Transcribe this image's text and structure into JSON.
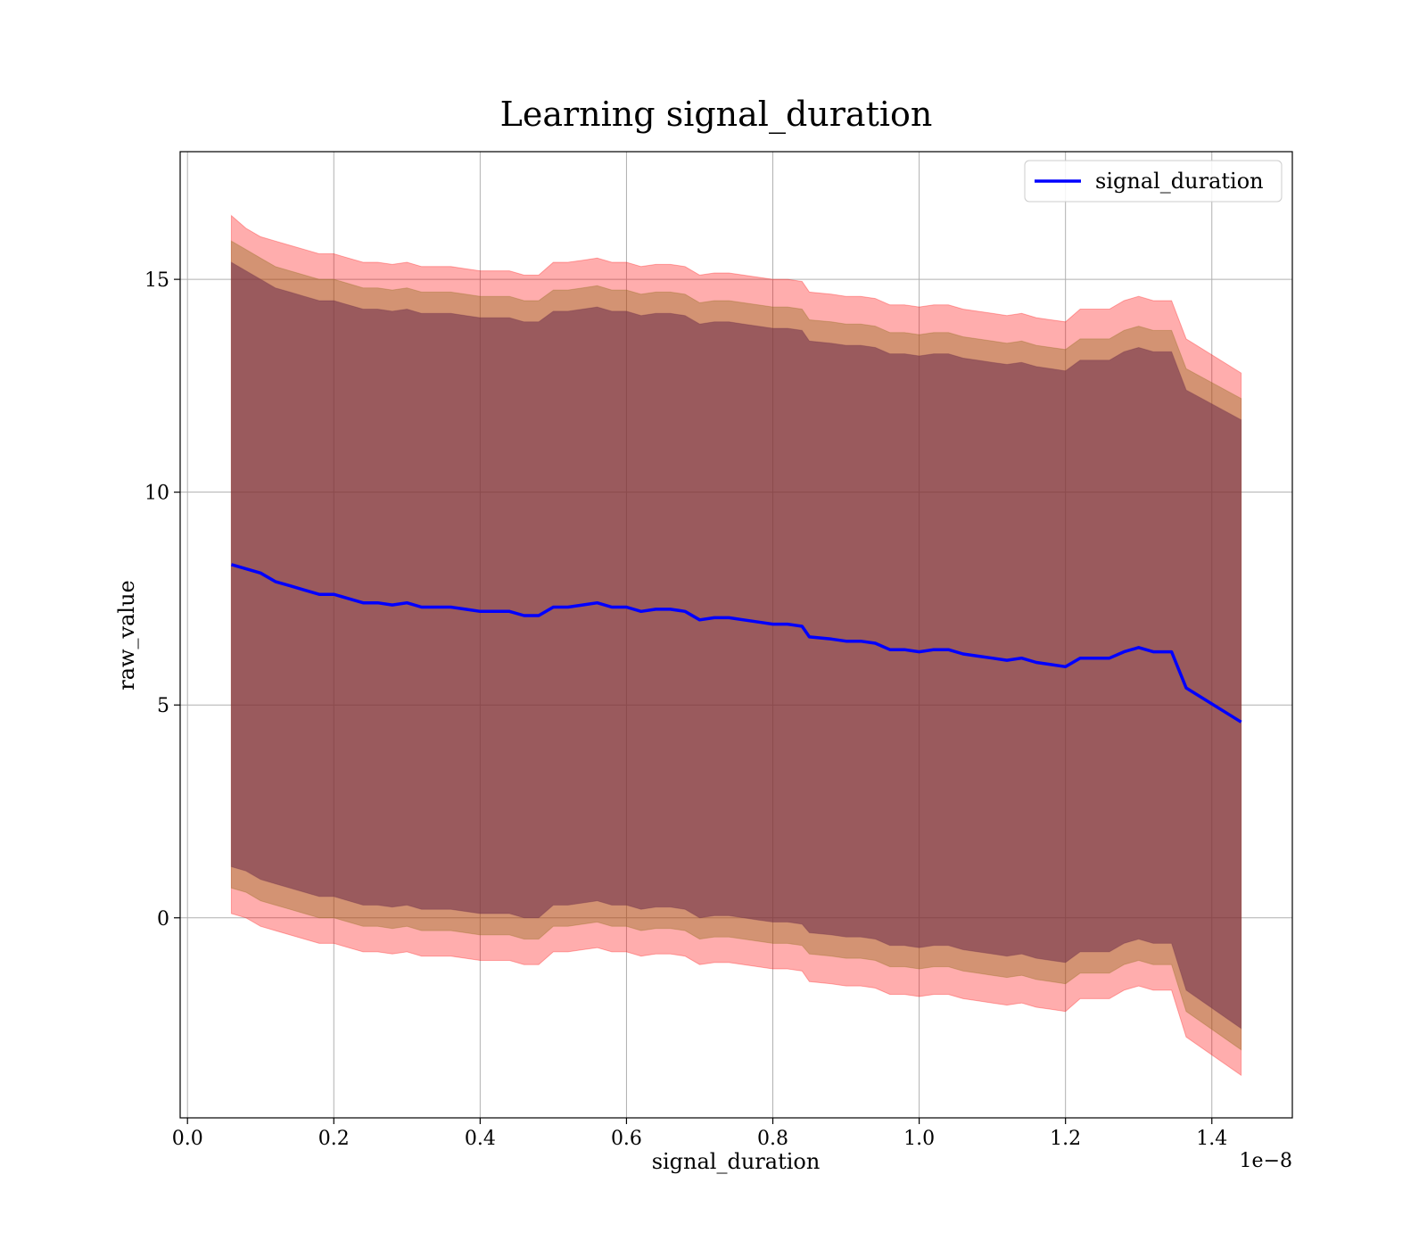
{
  "chart_data": {
    "type": "line",
    "title": "Learning signal_duration",
    "xlabel": "signal_duration",
    "ylabel": "raw_value",
    "x_offset_label": "1e−8",
    "xlim": [
      -0.01,
      1.51
    ],
    "ylim": [
      -4.7,
      18.0
    ],
    "xticks": [
      0.0,
      0.2,
      0.4,
      0.6,
      0.8,
      1.0,
      1.2,
      1.4
    ],
    "xtick_labels": [
      "0.0",
      "0.2",
      "0.4",
      "0.6",
      "0.8",
      "1.0",
      "1.2",
      "1.4"
    ],
    "yticks": [
      0,
      5,
      10,
      15
    ],
    "ytick_labels": [
      "0",
      "5",
      "10",
      "15"
    ],
    "grid": true,
    "legend": {
      "position": "top-right",
      "entries": [
        "signal_duration"
      ]
    },
    "colors": {
      "line": "#0000ff",
      "band_outer": "#ff0000",
      "band_mid": "#8b6914",
      "band_inner": "#6b2c4a"
    },
    "series": [
      {
        "name": "signal_duration",
        "x": [
          0.06,
          0.08,
          0.1,
          0.12,
          0.14,
          0.16,
          0.18,
          0.2,
          0.22,
          0.24,
          0.26,
          0.28,
          0.3,
          0.32,
          0.34,
          0.36,
          0.38,
          0.4,
          0.42,
          0.44,
          0.46,
          0.48,
          0.5,
          0.52,
          0.54,
          0.56,
          0.58,
          0.6,
          0.62,
          0.64,
          0.66,
          0.68,
          0.7,
          0.72,
          0.74,
          0.76,
          0.78,
          0.8,
          0.82,
          0.84,
          0.85,
          0.88,
          0.9,
          0.92,
          0.94,
          0.96,
          0.98,
          1.0,
          1.02,
          1.04,
          1.06,
          1.08,
          1.1,
          1.12,
          1.14,
          1.16,
          1.18,
          1.2,
          1.22,
          1.24,
          1.26,
          1.28,
          1.3,
          1.32,
          1.345,
          1.365,
          1.44
        ],
        "y": [
          8.3,
          8.2,
          8.1,
          7.9,
          7.8,
          7.7,
          7.6,
          7.6,
          7.5,
          7.4,
          7.4,
          7.35,
          7.4,
          7.3,
          7.3,
          7.3,
          7.25,
          7.2,
          7.2,
          7.2,
          7.1,
          7.1,
          7.3,
          7.3,
          7.35,
          7.4,
          7.3,
          7.3,
          7.2,
          7.25,
          7.25,
          7.2,
          7.0,
          7.05,
          7.05,
          7.0,
          6.95,
          6.9,
          6.9,
          6.85,
          6.6,
          6.55,
          6.5,
          6.5,
          6.45,
          6.3,
          6.3,
          6.25,
          6.3,
          6.3,
          6.2,
          6.15,
          6.1,
          6.05,
          6.1,
          6.0,
          5.95,
          5.9,
          6.1,
          6.1,
          6.1,
          6.25,
          6.35,
          6.25,
          6.25,
          5.4,
          4.6
        ]
      }
    ],
    "bands": [
      {
        "level": "outer",
        "upper": [
          16.5,
          16.2,
          16.0,
          15.9,
          15.8,
          15.7,
          15.6,
          15.6,
          15.5,
          15.4,
          15.4,
          15.35,
          15.4,
          15.3,
          15.3,
          15.3,
          15.25,
          15.2,
          15.2,
          15.2,
          15.1,
          15.1,
          15.4,
          15.4,
          15.45,
          15.5,
          15.4,
          15.4,
          15.3,
          15.35,
          15.35,
          15.3,
          15.1,
          15.15,
          15.15,
          15.1,
          15.05,
          15.0,
          15.0,
          14.95,
          14.7,
          14.65,
          14.6,
          14.6,
          14.55,
          14.4,
          14.4,
          14.35,
          14.4,
          14.4,
          14.3,
          14.25,
          14.2,
          14.15,
          14.2,
          14.1,
          14.05,
          14.0,
          14.3,
          14.3,
          14.3,
          14.5,
          14.6,
          14.5,
          14.5,
          13.6,
          12.8
        ],
        "lower": [
          0.1,
          0.0,
          -0.2,
          -0.3,
          -0.4,
          -0.5,
          -0.6,
          -0.6,
          -0.7,
          -0.8,
          -0.8,
          -0.85,
          -0.8,
          -0.9,
          -0.9,
          -0.9,
          -0.95,
          -1.0,
          -1.0,
          -1.0,
          -1.1,
          -1.1,
          -0.8,
          -0.8,
          -0.75,
          -0.7,
          -0.8,
          -0.8,
          -0.9,
          -0.85,
          -0.85,
          -0.9,
          -1.1,
          -1.05,
          -1.05,
          -1.1,
          -1.15,
          -1.2,
          -1.2,
          -1.25,
          -1.5,
          -1.55,
          -1.6,
          -1.6,
          -1.65,
          -1.8,
          -1.8,
          -1.85,
          -1.8,
          -1.8,
          -1.9,
          -1.95,
          -2.0,
          -2.05,
          -2.0,
          -2.1,
          -2.15,
          -2.2,
          -1.9,
          -1.9,
          -1.9,
          -1.7,
          -1.6,
          -1.7,
          -1.7,
          -2.8,
          -3.7
        ]
      },
      {
        "level": "mid",
        "upper": [
          15.9,
          15.7,
          15.5,
          15.3,
          15.2,
          15.1,
          15.0,
          15.0,
          14.9,
          14.8,
          14.8,
          14.75,
          14.8,
          14.7,
          14.7,
          14.7,
          14.65,
          14.6,
          14.6,
          14.6,
          14.5,
          14.5,
          14.75,
          14.75,
          14.8,
          14.85,
          14.75,
          14.75,
          14.65,
          14.7,
          14.7,
          14.65,
          14.45,
          14.5,
          14.5,
          14.45,
          14.4,
          14.35,
          14.35,
          14.3,
          14.05,
          14.0,
          13.95,
          13.95,
          13.9,
          13.75,
          13.75,
          13.7,
          13.75,
          13.75,
          13.65,
          13.6,
          13.55,
          13.5,
          13.55,
          13.45,
          13.4,
          13.35,
          13.6,
          13.6,
          13.6,
          13.8,
          13.9,
          13.8,
          13.8,
          12.9,
          12.2
        ],
        "lower": [
          0.7,
          0.6,
          0.4,
          0.3,
          0.2,
          0.1,
          0.0,
          0.0,
          -0.1,
          -0.2,
          -0.2,
          -0.25,
          -0.2,
          -0.3,
          -0.3,
          -0.3,
          -0.35,
          -0.4,
          -0.4,
          -0.4,
          -0.5,
          -0.5,
          -0.2,
          -0.2,
          -0.15,
          -0.1,
          -0.2,
          -0.2,
          -0.3,
          -0.25,
          -0.25,
          -0.3,
          -0.5,
          -0.45,
          -0.45,
          -0.5,
          -0.55,
          -0.6,
          -0.6,
          -0.65,
          -0.85,
          -0.9,
          -0.95,
          -0.95,
          -1.0,
          -1.15,
          -1.15,
          -1.2,
          -1.15,
          -1.15,
          -1.25,
          -1.3,
          -1.35,
          -1.4,
          -1.35,
          -1.45,
          -1.5,
          -1.55,
          -1.3,
          -1.3,
          -1.3,
          -1.1,
          -1.0,
          -1.1,
          -1.1,
          -2.2,
          -3.1
        ]
      },
      {
        "level": "inner",
        "upper": [
          15.4,
          15.2,
          15.0,
          14.8,
          14.7,
          14.6,
          14.5,
          14.5,
          14.4,
          14.3,
          14.3,
          14.25,
          14.3,
          14.2,
          14.2,
          14.2,
          14.15,
          14.1,
          14.1,
          14.1,
          14.0,
          14.0,
          14.25,
          14.25,
          14.3,
          14.35,
          14.25,
          14.25,
          14.15,
          14.2,
          14.2,
          14.15,
          13.95,
          14.0,
          14.0,
          13.95,
          13.9,
          13.85,
          13.85,
          13.8,
          13.55,
          13.5,
          13.45,
          13.45,
          13.4,
          13.25,
          13.25,
          13.2,
          13.25,
          13.25,
          13.15,
          13.1,
          13.05,
          13.0,
          13.05,
          12.95,
          12.9,
          12.85,
          13.1,
          13.1,
          13.1,
          13.3,
          13.4,
          13.3,
          13.3,
          12.4,
          11.7
        ],
        "lower": [
          1.2,
          1.1,
          0.9,
          0.8,
          0.7,
          0.6,
          0.5,
          0.5,
          0.4,
          0.3,
          0.3,
          0.25,
          0.3,
          0.2,
          0.2,
          0.2,
          0.15,
          0.1,
          0.1,
          0.1,
          0.0,
          0.0,
          0.3,
          0.3,
          0.35,
          0.4,
          0.3,
          0.3,
          0.2,
          0.25,
          0.25,
          0.2,
          0.0,
          0.05,
          0.05,
          0.0,
          -0.05,
          -0.1,
          -0.1,
          -0.15,
          -0.35,
          -0.4,
          -0.45,
          -0.45,
          -0.5,
          -0.65,
          -0.65,
          -0.7,
          -0.65,
          -0.65,
          -0.75,
          -0.8,
          -0.85,
          -0.9,
          -0.85,
          -0.95,
          -1.0,
          -1.05,
          -0.8,
          -0.8,
          -0.8,
          -0.6,
          -0.5,
          -0.6,
          -0.6,
          -1.7,
          -2.6
        ]
      }
    ]
  }
}
